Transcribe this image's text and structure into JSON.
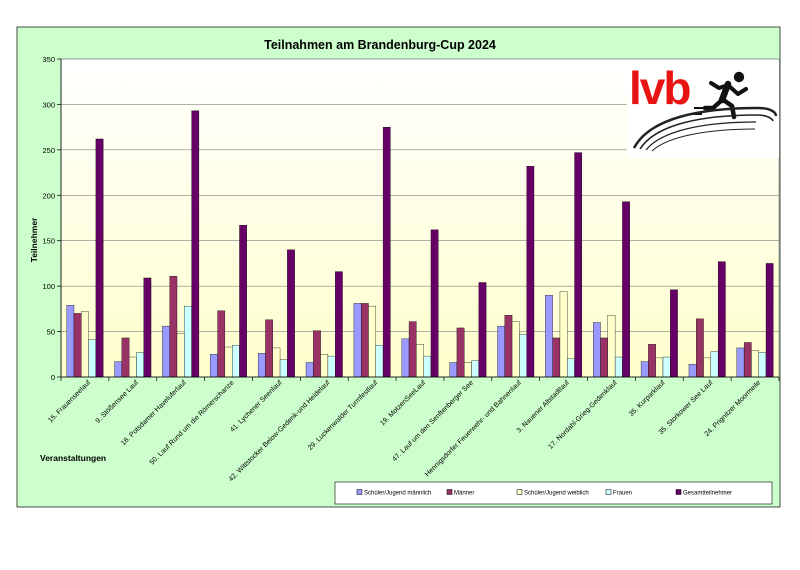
{
  "chart_data": {
    "type": "bar",
    "title": "Teilnahmen am Brandenburg-Cup 2024",
    "xlabel": "Veranstaltungen",
    "ylabel": "Teilnehmer",
    "ylim": [
      0,
      350
    ],
    "yticks": [
      0,
      50,
      100,
      150,
      200,
      250,
      300,
      350
    ],
    "grid": true,
    "legend_position": "bottom-right",
    "categories": [
      "15. Frauenseelauf",
      "9. Stößensee Lauf",
      "18. Potsdamer Haveluferlauf",
      "50. Lauf Rund um die Römerschanze",
      "41. Lychener Seenlauf",
      "42. Wittstocker Below-Gedenk-und Heidelauf",
      "29. Luckenwalder Turmfestlauf",
      "19. MotzenSeeLauf",
      "47. Lauf um den Senftenberger See",
      "Hennigsdorfer Feuerwehr- und Bahnenlauf",
      "3. Nauener Altstadtlauf",
      "17. Nordahl-Grieg-Gedenklauf",
      "35. Kurparklauf",
      "35. Storkower See Lauf",
      "24. Prignitzer Moormeile"
    ],
    "series": [
      {
        "name": "Schüler/Jugend männlich",
        "color": "#9999ff",
        "values": [
          79,
          17,
          56,
          25,
          26,
          16,
          81,
          42,
          16,
          56,
          90,
          60,
          17,
          14,
          32
        ]
      },
      {
        "name": "Männer",
        "color": "#993366",
        "values": [
          70,
          43,
          111,
          73,
          63,
          51,
          81,
          61,
          54,
          68,
          43,
          43,
          36,
          64,
          38
        ]
      },
      {
        "name": "Schüler/Jugend weiblich",
        "color": "#ffffcc",
        "values": [
          72,
          22,
          48,
          33,
          32,
          25,
          78,
          36,
          16,
          61,
          94,
          68,
          21,
          21,
          29
        ]
      },
      {
        "name": "Frauen",
        "color": "#ccffff",
        "values": [
          41,
          27,
          78,
          35,
          19,
          23,
          35,
          23,
          18,
          47,
          20,
          22,
          22,
          28,
          27
        ]
      },
      {
        "name": "Gesamtteilnehmer",
        "color": "#660066",
        "values": [
          262,
          109,
          293,
          167,
          140,
          116,
          275,
          162,
          104,
          232,
          247,
          193,
          96,
          127,
          125
        ]
      }
    ]
  },
  "logo": {
    "text": "lvb",
    "text_color": "#e81414",
    "runner_color": "#111111"
  },
  "colors": {
    "outer_background": "#ccffcc",
    "plot_background_top": "#ffffff",
    "plot_background_bottom": "#ffffcc",
    "gridline": "#808080",
    "axis": "#000000"
  }
}
